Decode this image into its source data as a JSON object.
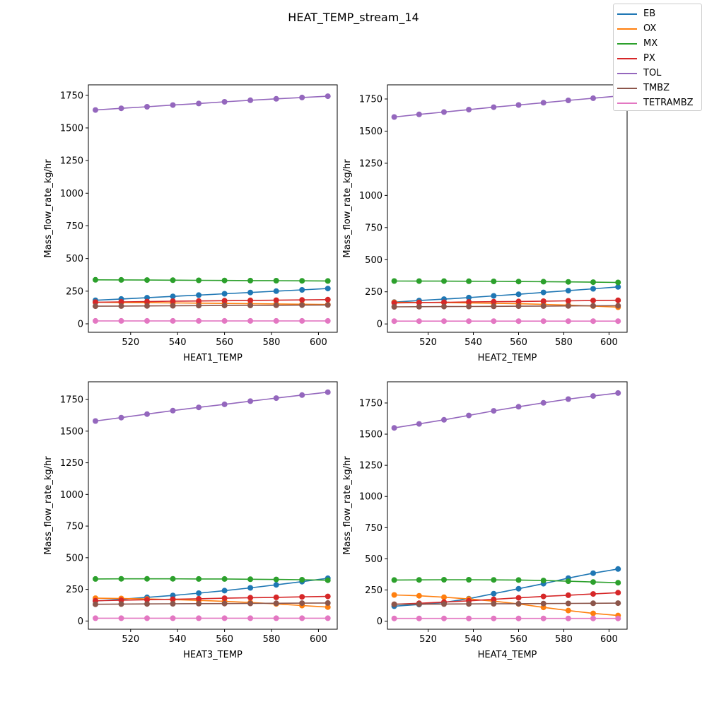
{
  "figure": {
    "title": "HEAT_TEMP_stream_14"
  },
  "legend": {
    "placement": "upper-right",
    "items": [
      {
        "label": "EB",
        "color": "#1f77b4"
      },
      {
        "label": "OX",
        "color": "#ff7f0e"
      },
      {
        "label": "MX",
        "color": "#2ca02c"
      },
      {
        "label": "PX",
        "color": "#d62728"
      },
      {
        "label": "TOL",
        "color": "#9467bd"
      },
      {
        "label": "TMBZ",
        "color": "#8c564b"
      },
      {
        "label": "TETRAMBZ",
        "color": "#e377c2"
      }
    ]
  },
  "chart_data": [
    {
      "type": "line",
      "xlabel": "HEAT1_TEMP",
      "ylabel": "Mass_flow_rate_kg/hr",
      "xlim": [
        502,
        608
      ],
      "ylim": [
        -65,
        1830
      ],
      "xticks": [
        520,
        540,
        560,
        580,
        600
      ],
      "yticks": [
        0,
        250,
        500,
        750,
        1000,
        1250,
        1500,
        1750
      ],
      "grid": false,
      "x": [
        505,
        516,
        527,
        538,
        549,
        560,
        571,
        582,
        593,
        604
      ],
      "series": [
        {
          "name": "EB",
          "color": "#1f77b4",
          "values": [
            180,
            190,
            200,
            210,
            220,
            230,
            240,
            250,
            260,
            270
          ]
        },
        {
          "name": "OX",
          "color": "#ff7f0e",
          "values": [
            165,
            163,
            162,
            160,
            158,
            156,
            154,
            152,
            150,
            148
          ]
        },
        {
          "name": "MX",
          "color": "#2ca02c",
          "values": [
            337,
            336,
            335,
            334,
            333,
            332,
            331,
            330,
            329,
            328
          ]
        },
        {
          "name": "PX",
          "color": "#d62728",
          "values": [
            165,
            168,
            170,
            173,
            175,
            177,
            179,
            181,
            183,
            185
          ]
        },
        {
          "name": "TOL",
          "color": "#9467bd",
          "values": [
            1637,
            1650,
            1662,
            1675,
            1687,
            1700,
            1712,
            1723,
            1733,
            1743
          ]
        },
        {
          "name": "TMBZ",
          "color": "#8c564b",
          "values": [
            135,
            136,
            137,
            138,
            139,
            140,
            141,
            142,
            143,
            144
          ]
        },
        {
          "name": "TETRAMBZ",
          "color": "#e377c2",
          "values": [
            22,
            22,
            22,
            22,
            22,
            22,
            22,
            22,
            22,
            22
          ]
        }
      ]
    },
    {
      "type": "line",
      "xlabel": "HEAT2_TEMP",
      "ylabel": "Mass_flow_rate_kg/hr",
      "xlim": [
        502,
        608
      ],
      "ylim": [
        -65,
        1860
      ],
      "xticks": [
        520,
        540,
        560,
        580,
        600
      ],
      "yticks": [
        0,
        250,
        500,
        750,
        1000,
        1250,
        1500,
        1750
      ],
      "grid": false,
      "x": [
        505,
        516,
        527,
        538,
        549,
        560,
        571,
        582,
        593,
        604
      ],
      "series": [
        {
          "name": "EB",
          "color": "#1f77b4",
          "values": [
            170,
            182,
            193,
            205,
            218,
            231,
            245,
            259,
            273,
            288
          ]
        },
        {
          "name": "OX",
          "color": "#ff7f0e",
          "values": [
            168,
            167,
            166,
            164,
            161,
            157,
            152,
            146,
            139,
            130
          ]
        },
        {
          "name": "MX",
          "color": "#2ca02c",
          "values": [
            334,
            333,
            333,
            332,
            331,
            330,
            329,
            327,
            325,
            323
          ]
        },
        {
          "name": "PX",
          "color": "#d62728",
          "values": [
            163,
            166,
            168,
            171,
            173,
            175,
            177,
            180,
            182,
            184
          ]
        },
        {
          "name": "TOL",
          "color": "#9467bd",
          "values": [
            1610,
            1630,
            1648,
            1667,
            1686,
            1703,
            1721,
            1739,
            1756,
            1773
          ]
        },
        {
          "name": "TMBZ",
          "color": "#8c564b",
          "values": [
            133,
            134,
            135,
            136,
            137,
            138,
            139,
            140,
            141,
            142
          ]
        },
        {
          "name": "TETRAMBZ",
          "color": "#e377c2",
          "values": [
            22,
            22,
            22,
            22,
            22,
            22,
            22,
            22,
            22,
            22
          ]
        }
      ]
    },
    {
      "type": "line",
      "xlabel": "HEAT3_TEMP",
      "ylabel": "Mass_flow_rate_kg/hr",
      "xlim": [
        502,
        608
      ],
      "ylim": [
        -65,
        1890
      ],
      "xticks": [
        520,
        540,
        560,
        580,
        600
      ],
      "yticks": [
        0,
        250,
        500,
        750,
        1000,
        1250,
        1500,
        1750
      ],
      "grid": false,
      "x": [
        505,
        516,
        527,
        538,
        549,
        560,
        571,
        582,
        593,
        604
      ],
      "series": [
        {
          "name": "EB",
          "color": "#1f77b4",
          "values": [
            158,
            172,
            187,
            202,
            220,
            240,
            262,
            286,
            311,
            338
          ]
        },
        {
          "name": "OX",
          "color": "#ff7f0e",
          "values": [
            180,
            178,
            174,
            169,
            163,
            155,
            146,
            135,
            122,
            110
          ]
        },
        {
          "name": "MX",
          "color": "#2ca02c",
          "values": [
            332,
            333,
            333,
            333,
            332,
            332,
            330,
            328,
            326,
            322
          ]
        },
        {
          "name": "PX",
          "color": "#d62728",
          "values": [
            160,
            164,
            168,
            172,
            176,
            180,
            184,
            187,
            191,
            194
          ]
        },
        {
          "name": "TOL",
          "color": "#9467bd",
          "values": [
            1580,
            1607,
            1635,
            1662,
            1688,
            1712,
            1737,
            1761,
            1785,
            1808
          ]
        },
        {
          "name": "TMBZ",
          "color": "#8c564b",
          "values": [
            132,
            134,
            135,
            136,
            137,
            138,
            139,
            140,
            141,
            142
          ]
        },
        {
          "name": "TETRAMBZ",
          "color": "#e377c2",
          "values": [
            22,
            22,
            22,
            22,
            22,
            22,
            22,
            22,
            22,
            22
          ]
        }
      ]
    },
    {
      "type": "line",
      "xlabel": "HEAT4_TEMP",
      "ylabel": "Mass_flow_rate_kg/hr",
      "xlim": [
        502,
        608
      ],
      "ylim": [
        -65,
        1920
      ],
      "xticks": [
        520,
        540,
        560,
        580,
        600
      ],
      "yticks": [
        0,
        250,
        500,
        750,
        1000,
        1250,
        1500,
        1750
      ],
      "grid": false,
      "x": [
        505,
        516,
        527,
        538,
        549,
        560,
        571,
        582,
        593,
        604
      ],
      "series": [
        {
          "name": "EB",
          "color": "#1f77b4",
          "values": [
            120,
            133,
            150,
            180,
            220,
            260,
            300,
            345,
            385,
            418
          ]
        },
        {
          "name": "OX",
          "color": "#ff7f0e",
          "values": [
            210,
            203,
            192,
            178,
            160,
            138,
            110,
            85,
            62,
            45
          ]
        },
        {
          "name": "MX",
          "color": "#2ca02c",
          "values": [
            330,
            331,
            332,
            332,
            331,
            330,
            326,
            320,
            314,
            308
          ]
        },
        {
          "name": "PX",
          "color": "#d62728",
          "values": [
            135,
            143,
            153,
            163,
            175,
            187,
            198,
            208,
            218,
            228
          ]
        },
        {
          "name": "TOL",
          "color": "#9467bd",
          "values": [
            1550,
            1582,
            1615,
            1650,
            1687,
            1720,
            1751,
            1781,
            1806,
            1830
          ]
        },
        {
          "name": "TMBZ",
          "color": "#8c564b",
          "values": [
            135,
            136,
            137,
            138,
            139,
            140,
            141,
            142,
            143,
            144
          ]
        },
        {
          "name": "TETRAMBZ",
          "color": "#e377c2",
          "values": [
            22,
            22,
            22,
            22,
            22,
            22,
            22,
            22,
            22,
            22
          ]
        }
      ]
    }
  ]
}
